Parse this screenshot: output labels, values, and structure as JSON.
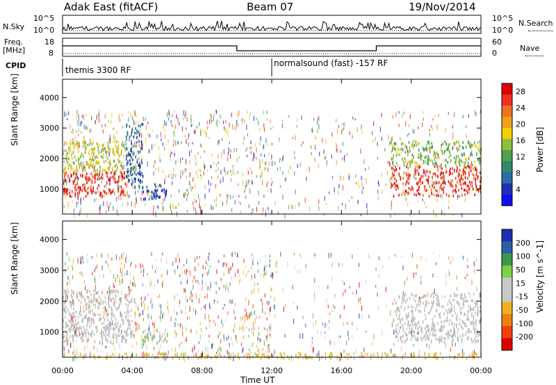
{
  "header": {
    "title": "Adak East (fitACF)",
    "beam": "Beam 07",
    "date": "19/Nov/2014"
  },
  "nsky_panel": {
    "left_label": "N.Sky",
    "right_label": "N.Search",
    "left_ticks": [
      "10^5",
      "10^0"
    ],
    "right_ticks": [
      "10^5",
      "10^0"
    ]
  },
  "freq_panel": {
    "label_line1": "Freq.",
    "label_line2": "[MHz]",
    "left_ticks": [
      "18",
      "8"
    ],
    "right_label": "Nave",
    "right_ticks": [
      "60",
      "0"
    ],
    "freq_steps": [
      {
        "t_start": 0,
        "t_end": 10,
        "level": "high"
      },
      {
        "t_start": 10,
        "t_end": 18,
        "level": "low"
      },
      {
        "t_start": 18,
        "t_end": 24,
        "level": "high"
      }
    ]
  },
  "cpid_panel": {
    "label": "CPID",
    "segments": [
      {
        "t_start": 0,
        "t_end": 12,
        "name": "themis 3300 RF"
      },
      {
        "t_start": 12,
        "t_end": 24,
        "name": "normalsound (fast) -157 RF"
      }
    ]
  },
  "colors": {
    "power": [
      "#1010ee",
      "#2030b0",
      "#2c6aa8",
      "#2e8a6a",
      "#50a050",
      "#8cc040",
      "#f0d000",
      "#f0a020",
      "#f07020",
      "#f03020",
      "#e00000"
    ],
    "velocity": [
      "#1e2fb0",
      "#2a60a8",
      "#3a9a4a",
      "#7ed04a",
      "#c8c8c8",
      "#c8c8c8",
      "#f0b020",
      "#f08010",
      "#f04010",
      "#e00000"
    ],
    "ground_scatter": "#bdbdbd"
  },
  "chart_data": [
    {
      "type": "heatmap",
      "title": "",
      "xlabel": "Time UT",
      "ylabel": "Slant Range [km]",
      "xlim": [
        0,
        24
      ],
      "ylim": [
        180,
        4600
      ],
      "x_ticks": [
        "00:00",
        "04:00",
        "08:00",
        "12:00",
        "16:00",
        "20:00",
        "00:00"
      ],
      "y_ticks": [
        1000,
        2000,
        3000,
        4000
      ],
      "colorbar": {
        "label": "Power [dB]",
        "ticks": [
          4,
          8,
          12,
          16,
          20,
          24,
          28
        ],
        "range": [
          0,
          30
        ]
      },
      "regions": [
        {
          "t_start": 0,
          "t_end": 3.6,
          "range_low": 800,
          "range_high": 1600,
          "value": 28
        },
        {
          "t_start": 0,
          "t_end": 3.6,
          "range_low": 1600,
          "range_high": 2600,
          "value": 17
        },
        {
          "t_start": 3.6,
          "t_end": 4.6,
          "range_low": 1000,
          "range_high": 3200,
          "value": 6
        },
        {
          "t_start": 4.6,
          "t_end": 6.0,
          "range_low": 700,
          "range_high": 1200,
          "value": 4
        },
        {
          "t_start": 18.8,
          "t_end": 24,
          "range_low": 800,
          "range_high": 1800,
          "value": 27
        },
        {
          "t_start": 18.8,
          "t_end": 24,
          "range_low": 1800,
          "range_high": 2600,
          "value": 14
        }
      ]
    },
    {
      "type": "heatmap",
      "title": "",
      "xlabel": "Time UT",
      "ylabel": "Slant Range [km]",
      "xlim": [
        0,
        24
      ],
      "ylim": [
        180,
        4600
      ],
      "x_ticks": [
        "00:00",
        "04:00",
        "08:00",
        "12:00",
        "16:00",
        "20:00",
        "00:00"
      ],
      "y_ticks": [
        1000,
        2000,
        3000,
        4000
      ],
      "colorbar": {
        "label": "Velocity [m s^-1]",
        "ticks": [
          200,
          100,
          50,
          15,
          -15,
          -50,
          -100,
          -200
        ],
        "range": [
          -250,
          250
        ]
      },
      "regions": [
        {
          "t_start": 0,
          "t_end": 4.0,
          "range_low": 700,
          "range_high": 2400,
          "value": 0,
          "ground_scatter": true
        },
        {
          "t_start": 4.5,
          "t_end": 6.0,
          "range_low": 700,
          "range_high": 1100,
          "value": 50
        },
        {
          "t_start": 19.0,
          "t_end": 24,
          "range_low": 700,
          "range_high": 2300,
          "value": 0,
          "ground_scatter": true
        },
        {
          "t_start": 0,
          "t_end": 24,
          "range_low": 180,
          "range_high": 350,
          "value": -60
        }
      ]
    }
  ]
}
